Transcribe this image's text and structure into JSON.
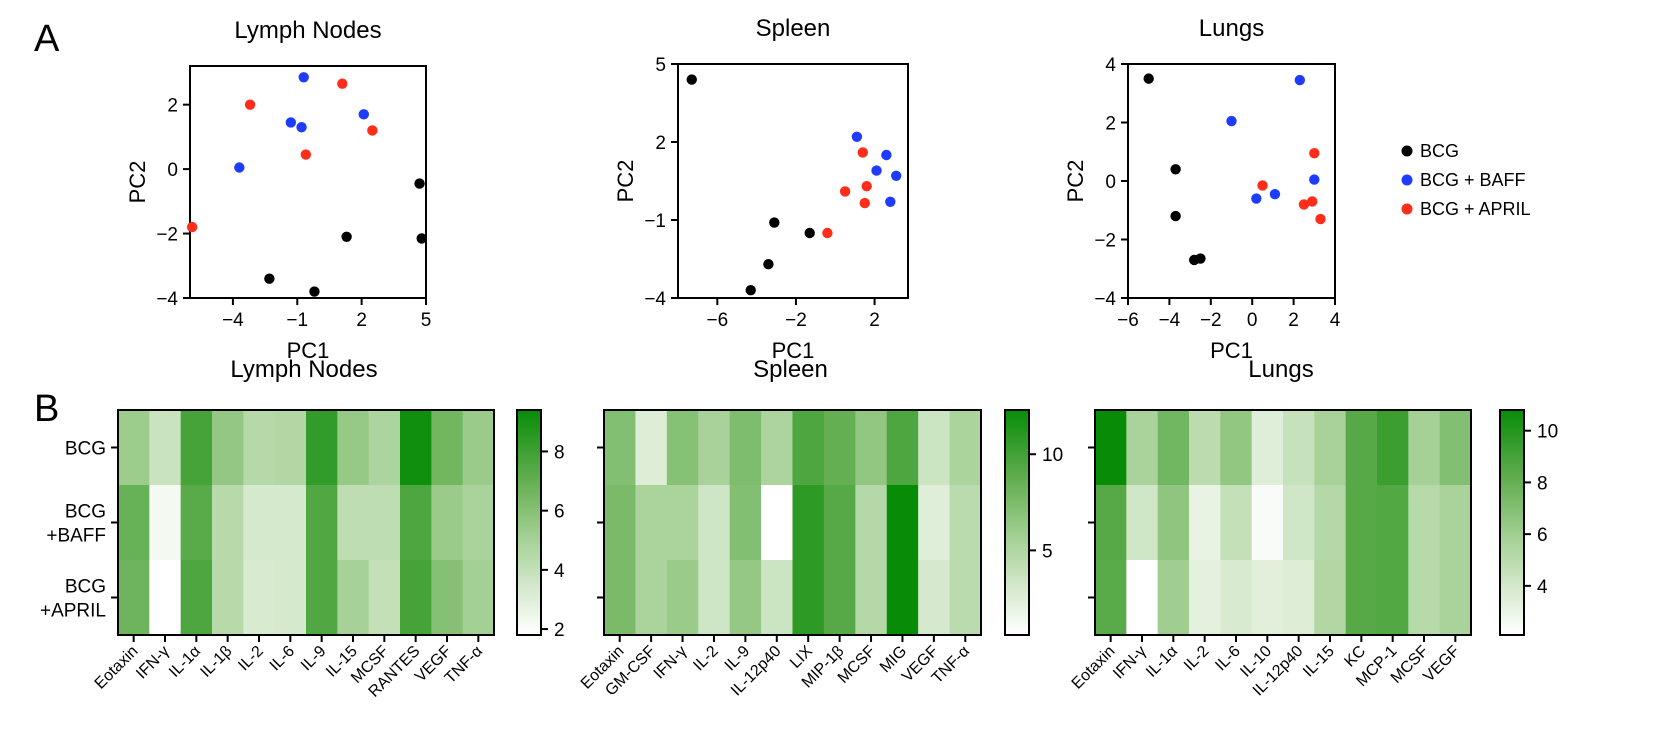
{
  "panel_labels": {
    "a": "A",
    "b": "B"
  },
  "legend": [
    {
      "label": "BCG",
      "color": "#000000"
    },
    {
      "label": "BCG + BAFF",
      "color": "#1e3cff"
    },
    {
      "label": "BCG + APRIL",
      "color": "#ff2d1a"
    }
  ],
  "chart_data": [
    {
      "type": "scatter",
      "title": "Lymph Nodes",
      "xlabel": "PC1",
      "ylabel": "PC2",
      "xlim": [
        -6,
        5
      ],
      "ylim": [
        -4,
        3.2
      ],
      "xticks": [
        -4,
        -1,
        2,
        5
      ],
      "xtick_labels": [
        "-4",
        "-1",
        "2",
        "5"
      ],
      "yticks": [
        -4,
        -2,
        0,
        2
      ],
      "series": [
        {
          "name": "BCG",
          "color": "#000000",
          "points": [
            [
              -2.3,
              -3.4
            ],
            [
              -0.2,
              -3.8
            ],
            [
              1.3,
              -2.1
            ],
            [
              4.7,
              -0.45
            ],
            [
              4.8,
              -2.15
            ]
          ]
        },
        {
          "name": "BCG + BAFF",
          "color": "#1e3cff",
          "points": [
            [
              -3.7,
              0.05
            ],
            [
              -1.3,
              1.45
            ],
            [
              -0.8,
              1.3
            ],
            [
              -0.7,
              2.85
            ],
            [
              2.1,
              1.7
            ]
          ]
        },
        {
          "name": "BCG + APRIL",
          "color": "#ff2d1a",
          "points": [
            [
              -5.9,
              -1.8
            ],
            [
              -3.2,
              2.0
            ],
            [
              -0.6,
              0.45
            ],
            [
              1.1,
              2.65
            ],
            [
              2.5,
              1.2
            ]
          ]
        }
      ]
    },
    {
      "type": "scatter",
      "title": "Spleen",
      "xlabel": "PC1",
      "ylabel": "PC2",
      "xlim": [
        -8,
        3.7
      ],
      "ylim": [
        -4,
        5
      ],
      "xticks": [
        -6,
        -2,
        2
      ],
      "xtick_labels": [
        "-6",
        "-2",
        "2"
      ],
      "yticks": [
        -4,
        -1,
        2,
        5
      ],
      "series": [
        {
          "name": "BCG",
          "color": "#000000",
          "points": [
            [
              -7.3,
              4.4
            ],
            [
              -4.3,
              -3.7
            ],
            [
              -3.4,
              -2.7
            ],
            [
              -3.1,
              -1.1
            ],
            [
              -1.3,
              -1.5
            ]
          ]
        },
        {
          "name": "BCG + BAFF",
          "color": "#1e3cff",
          "points": [
            [
              1.1,
              2.2
            ],
            [
              2.1,
              0.9
            ],
            [
              2.6,
              1.5
            ],
            [
              2.8,
              -0.3
            ],
            [
              3.1,
              0.7
            ]
          ]
        },
        {
          "name": "BCG + APRIL",
          "color": "#ff2d1a",
          "points": [
            [
              0.5,
              0.1
            ],
            [
              1.4,
              1.6
            ],
            [
              1.6,
              0.3
            ],
            [
              1.5,
              -0.35
            ],
            [
              -0.4,
              -1.5
            ]
          ]
        }
      ]
    },
    {
      "type": "scatter",
      "title": "Lungs",
      "xlabel": "PC1",
      "ylabel": "PC2",
      "xlim": [
        -6,
        4
      ],
      "ylim": [
        -4,
        4
      ],
      "xticks": [
        -6,
        -4,
        -2,
        0,
        2,
        4
      ],
      "xtick_labels": [
        "-6",
        "-4",
        "-2",
        "0",
        "2",
        "4"
      ],
      "yticks": [
        -4,
        -2,
        0,
        2,
        4
      ],
      "series": [
        {
          "name": "BCG",
          "color": "#000000",
          "points": [
            [
              -5.0,
              3.5
            ],
            [
              -3.7,
              0.4
            ],
            [
              -3.7,
              -1.2
            ],
            [
              -2.8,
              -2.7
            ],
            [
              -2.5,
              -2.65
            ]
          ]
        },
        {
          "name": "BCG + BAFF",
          "color": "#1e3cff",
          "points": [
            [
              -1.0,
              2.05
            ],
            [
              0.2,
              -0.6
            ],
            [
              1.1,
              -0.45
            ],
            [
              2.3,
              3.45
            ],
            [
              3.0,
              0.05
            ]
          ]
        },
        {
          "name": "BCG + APRIL",
          "color": "#ff2d1a",
          "points": [
            [
              0.5,
              -0.15
            ],
            [
              2.5,
              -0.8
            ],
            [
              2.9,
              -0.7
            ],
            [
              3.0,
              0.95
            ],
            [
              3.3,
              -1.3
            ]
          ]
        }
      ]
    },
    {
      "type": "heatmap",
      "title": "Lymph Nodes",
      "row_labels": [
        [
          "BCG"
        ],
        [
          "BCG",
          "+BAFF"
        ],
        [
          "BCG",
          "+APRIL"
        ]
      ],
      "columns": [
        "Eotaxin",
        "IFN-γ",
        "IL-1α",
        "IL-1β",
        "IL-2",
        "IL-6",
        "IL-9",
        "IL-15",
        "MCSF",
        "RANTES",
        "VEGF",
        "TNF-α"
      ],
      "values": [
        [
          5.3,
          3.8,
          7.8,
          5.6,
          4.5,
          4.6,
          8.3,
          5.5,
          4.8,
          9.2,
          6.6,
          5.4
        ],
        [
          6.9,
          2.2,
          7.3,
          4.4,
          3.4,
          3.4,
          7.5,
          4.2,
          4.2,
          7.6,
          5.4,
          4.9
        ],
        [
          6.7,
          1.8,
          7.6,
          4.4,
          3.3,
          3.4,
          7.5,
          5.0,
          4.0,
          7.8,
          6.0,
          5.1
        ]
      ],
      "zlim": [
        1.8,
        9.4
      ],
      "colorbar_ticks": [
        2,
        4,
        6,
        8
      ]
    },
    {
      "type": "heatmap",
      "title": "Spleen",
      "row_labels": [
        [
          "",
          ""
        ],
        [
          ""
        ],
        [
          ""
        ]
      ],
      "columns": [
        "Eotaxin",
        "GM-CSF",
        "IFN-γ",
        "IL-2",
        "IL-9",
        "IL-12p40",
        "LIX",
        "MIP-1β",
        "MCSF",
        "MIG",
        "VEGF",
        "TNF-α"
      ],
      "values": [
        [
          7.2,
          2.6,
          7.0,
          5.4,
          7.4,
          5.2,
          9.5,
          8.6,
          6.5,
          9.5,
          3.6,
          5.3
        ],
        [
          7.6,
          5.3,
          5.3,
          3.4,
          7.2,
          0.6,
          10.8,
          9.2,
          4.8,
          12.3,
          2.5,
          4.5
        ],
        [
          7.6,
          5.3,
          6.1,
          3.4,
          6.4,
          3.6,
          10.8,
          9.2,
          4.8,
          12.3,
          3.0,
          4.5
        ]
      ],
      "zlim": [
        0.6,
        12.3
      ],
      "colorbar_ticks": [
        5,
        10
      ]
    },
    {
      "type": "heatmap",
      "title": "Lungs",
      "row_labels": [
        [
          ""
        ],
        [
          ""
        ],
        [
          ""
        ]
      ],
      "columns": [
        "Eotaxin",
        "IFN-γ",
        "IL-1α",
        "IL-2",
        "IL-6",
        "IL-10",
        "IL-12p40",
        "IL-15",
        "KC",
        "MCP-1",
        "MCSF",
        "VEGF"
      ],
      "values": [
        [
          10.8,
          5.6,
          7.6,
          4.9,
          6.5,
          3.5,
          4.5,
          5.7,
          8.5,
          9.3,
          5.8,
          7.0
        ],
        [
          8.5,
          4.1,
          6.6,
          3.1,
          4.6,
          2.4,
          4.1,
          5.2,
          8.5,
          8.6,
          5.1,
          5.6
        ],
        [
          8.4,
          2.1,
          6.0,
          3.3,
          3.8,
          3.4,
          3.6,
          5.3,
          8.5,
          8.6,
          5.1,
          5.6
        ]
      ],
      "zlim": [
        2.1,
        10.8
      ],
      "colorbar_ticks": [
        4,
        6,
        8,
        10
      ]
    }
  ]
}
